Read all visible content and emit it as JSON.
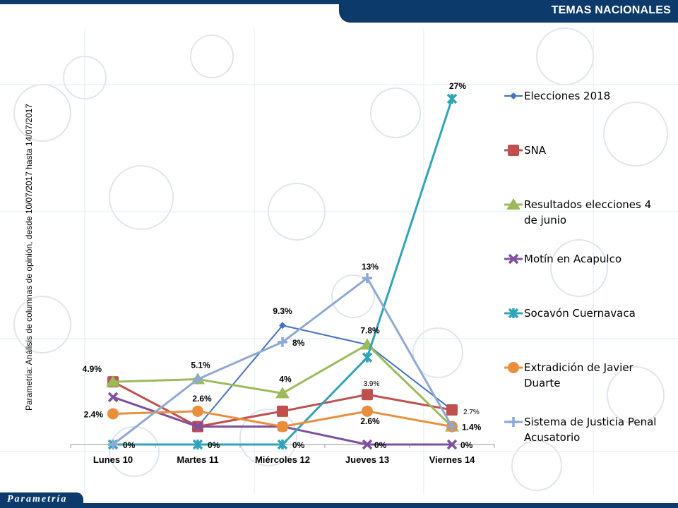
{
  "header": {
    "title": "TEMAS NACIONALES"
  },
  "footer": {
    "logo_text": "Parametría"
  },
  "source_note": "Parametria: Análisis de columnas de opinión, desde 10/07/2017 hasta 14/07/2017",
  "colors": {
    "header_bg": "#0b3a6b",
    "series": [
      "#4472c4",
      "#c0504d",
      "#9bbb59",
      "#7f4f9f",
      "#31a3b8",
      "#e88f3c",
      "#8ea9d6"
    ]
  },
  "chart_data": {
    "type": "line",
    "categories": [
      "Lunes 10",
      "Martes 11",
      "Miércoles 12",
      "Jueves 13",
      "Viernes 14"
    ],
    "ylim": [
      0,
      27
    ],
    "grid": false,
    "legend_position": "right",
    "series": [
      {
        "name": "Elecciones 2018",
        "marker": "diamond",
        "color": "#4472c4",
        "values": [
          null,
          1.4,
          9.3,
          7.8,
          2.7
        ],
        "labels": [
          "",
          "",
          "9.3%",
          "",
          ""
        ]
      },
      {
        "name": "SNA",
        "marker": "square",
        "color": "#c0504d",
        "values": [
          4.9,
          1.4,
          2.6,
          3.9,
          2.7
        ],
        "labels": [
          "4.9%",
          "",
          "",
          "3.9%",
          "2.7%"
        ]
      },
      {
        "name": "Resultados elecciones 4 de junio",
        "marker": "triangle",
        "color": "#9bbb59",
        "values": [
          4.9,
          5.1,
          4.0,
          7.8,
          1.4
        ],
        "labels": [
          "",
          "5.1%",
          "4%",
          "7.8%",
          ""
        ]
      },
      {
        "name": "Motín en Acapulco",
        "marker": "x",
        "color": "#7f4f9f",
        "values": [
          3.7,
          1.4,
          1.4,
          0,
          0
        ],
        "labels": [
          "",
          "",
          "",
          "0%",
          "0%"
        ]
      },
      {
        "name": "Socavón Cuernavaca",
        "marker": "star",
        "color": "#31a3b8",
        "values": [
          0,
          0,
          0,
          6.8,
          27
        ],
        "labels": [
          "0%",
          "0%",
          "0%",
          "",
          "27%"
        ]
      },
      {
        "name": "Extradición de Javier Duarte",
        "marker": "circle",
        "color": "#e88f3c",
        "values": [
          2.4,
          2.6,
          1.4,
          2.6,
          1.4
        ],
        "labels": [
          "2.4%",
          "2.6%",
          "",
          "2.6%",
          "1.4%"
        ]
      },
      {
        "name": "Sistema de Justicia Penal Acusatorio",
        "marker": "plus",
        "color": "#8ea9d6",
        "values": [
          0,
          5.1,
          8.0,
          13.0,
          1.4
        ],
        "labels": [
          "",
          "",
          "8%",
          "13%",
          ""
        ]
      }
    ]
  }
}
